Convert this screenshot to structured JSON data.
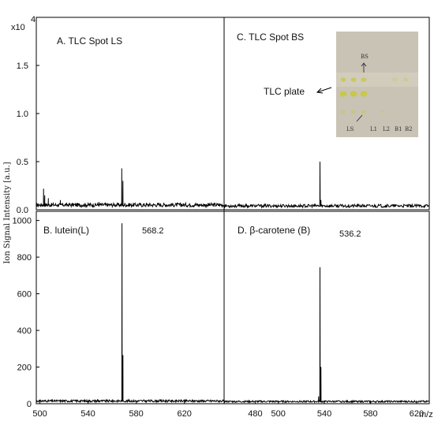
{
  "figure": {
    "y_axis_label": "Ion Signal Intensity [a.u.]",
    "x_unit": "m/z",
    "scale_factor": "x10",
    "scale_exponent": "4"
  },
  "chart_data": [
    {
      "type": "line",
      "panel": "A",
      "title": "A. TLC Spot LS",
      "xlim": [
        497,
        653
      ],
      "ylim": [
        0,
        2.0
      ],
      "yticks": [
        0,
        0.5,
        1.0,
        1.5
      ],
      "ytick_labels": [
        "0.0",
        "0.5",
        "1.0",
        "1.5"
      ],
      "baseline": 0.05,
      "peaks": [
        {
          "x": 503,
          "y": 0.22
        },
        {
          "x": 504,
          "y": 0.15
        },
        {
          "x": 507,
          "y": 0.12
        },
        {
          "x": 517,
          "y": 0.1
        },
        {
          "x": 549,
          "y": 0.08
        },
        {
          "x": 568,
          "y": 0.43
        },
        {
          "x": 569,
          "y": 0.3
        }
      ]
    },
    {
      "type": "line",
      "panel": "B",
      "title": "B. lutein(L)",
      "peak_label": "568.2",
      "xlim": [
        497,
        653
      ],
      "ylim": [
        0,
        1050
      ],
      "xticks": [
        500,
        540,
        580,
        620
      ],
      "xtick_labels": [
        "500",
        "540",
        "580",
        "620"
      ],
      "yticks": [
        0,
        200,
        400,
        600,
        800,
        1000
      ],
      "ytick_labels": [
        "0",
        "200",
        "400",
        "600",
        "800",
        "1000"
      ],
      "baseline": 15,
      "peaks": [
        {
          "x": 548,
          "y": 25
        },
        {
          "x": 568.2,
          "y": 985
        },
        {
          "x": 569,
          "y": 265
        }
      ]
    },
    {
      "type": "line",
      "panel": "C",
      "title": "C. TLC Spot BS",
      "xlim": [
        453,
        631
      ],
      "ylim": [
        0,
        2.0
      ],
      "baseline": 0.04,
      "peaks": [
        {
          "x": 536.2,
          "y": 0.5
        },
        {
          "x": 537,
          "y": 0.1
        }
      ]
    },
    {
      "type": "line",
      "panel": "D",
      "title": "D. β-carotene (B)",
      "peak_label": "536.2",
      "xlim": [
        453,
        631
      ],
      "ylim": [
        0,
        1050
      ],
      "xticks": [
        480,
        500,
        540,
        580,
        620
      ],
      "xtick_labels": [
        "480",
        "500",
        "540",
        "580",
        "620"
      ],
      "baseline": 12,
      "peaks": [
        {
          "x": 535,
          "y": 40
        },
        {
          "x": 536.2,
          "y": 745
        },
        {
          "x": 537,
          "y": 200
        }
      ]
    }
  ],
  "inset": {
    "caption": "TLC plate",
    "spot_labels": [
      "BS",
      "LS",
      "L1",
      "L2",
      "B1",
      "B2"
    ],
    "plate_color": "#c9c3b6",
    "spot_color": "#c8c84a"
  }
}
